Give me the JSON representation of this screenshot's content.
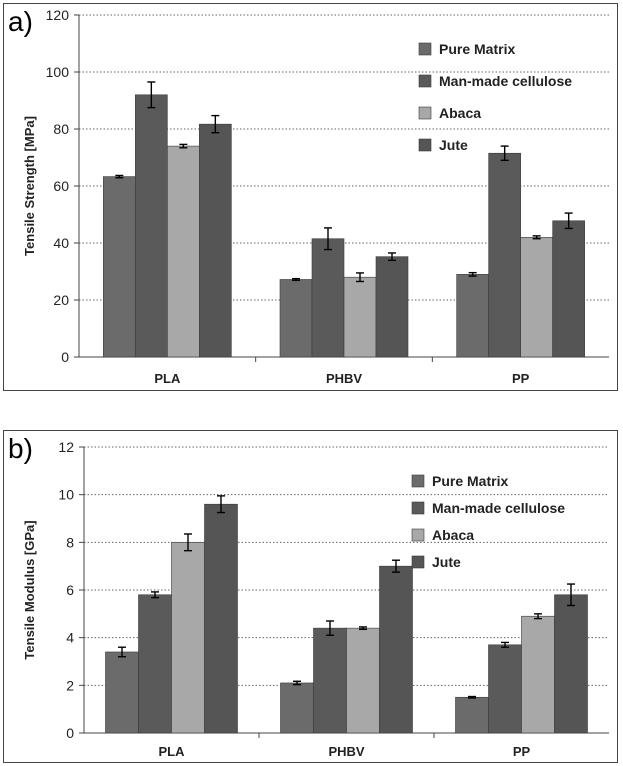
{
  "chart_data": [
    {
      "panel_label": "a)",
      "type": "bar",
      "ylabel": "Tensile Strength [MPa]",
      "ylim": [
        0,
        120
      ],
      "yticks": [
        0,
        20,
        40,
        60,
        80,
        100,
        120
      ],
      "grid": "horizontal dotted",
      "legend_position": "top-right",
      "categories": [
        "PLA",
        "PHBV",
        "PP"
      ],
      "series": [
        {
          "name": "Pure Matrix",
          "color": "#6b6b6b",
          "values": [
            63.3,
            27.2,
            29.0
          ],
          "errors": [
            0.4,
            0.3,
            0.6
          ]
        },
        {
          "name": "Man-made cellulose",
          "color": "#5a5a5a",
          "values": [
            92.0,
            41.5,
            71.5
          ],
          "errors": [
            4.5,
            3.8,
            2.5
          ]
        },
        {
          "name": "Abaca",
          "color": "#a8a8a8",
          "values": [
            74.0,
            28.0,
            42.0
          ],
          "errors": [
            0.6,
            1.5,
            0.5
          ]
        },
        {
          "name": "Jute",
          "color": "#555555",
          "values": [
            81.7,
            35.2,
            47.8
          ],
          "errors": [
            3.0,
            1.3,
            2.7
          ]
        }
      ]
    },
    {
      "panel_label": "b)",
      "type": "bar",
      "ylabel": "Tensile Modulus [GPa]",
      "ylim": [
        0,
        12
      ],
      "yticks": [
        0,
        2,
        4,
        6,
        8,
        10,
        12
      ],
      "grid": "horizontal dotted",
      "legend_position": "top-right",
      "categories": [
        "PLA",
        "PHBV",
        "PP"
      ],
      "series": [
        {
          "name": "Pure Matrix",
          "color": "#6b6b6b",
          "values": [
            3.4,
            2.1,
            1.5
          ],
          "errors": [
            0.2,
            0.07,
            0.03
          ]
        },
        {
          "name": "Man-made cellulose",
          "color": "#5a5a5a",
          "values": [
            5.8,
            4.4,
            3.7
          ],
          "errors": [
            0.12,
            0.3,
            0.1
          ]
        },
        {
          "name": "Abaca",
          "color": "#a8a8a8",
          "values": [
            8.0,
            4.4,
            4.9
          ],
          "errors": [
            0.35,
            0.05,
            0.1
          ]
        },
        {
          "name": "Jute",
          "color": "#555555",
          "values": [
            9.6,
            7.0,
            5.8
          ],
          "errors": [
            0.35,
            0.25,
            0.45
          ]
        }
      ]
    }
  ]
}
